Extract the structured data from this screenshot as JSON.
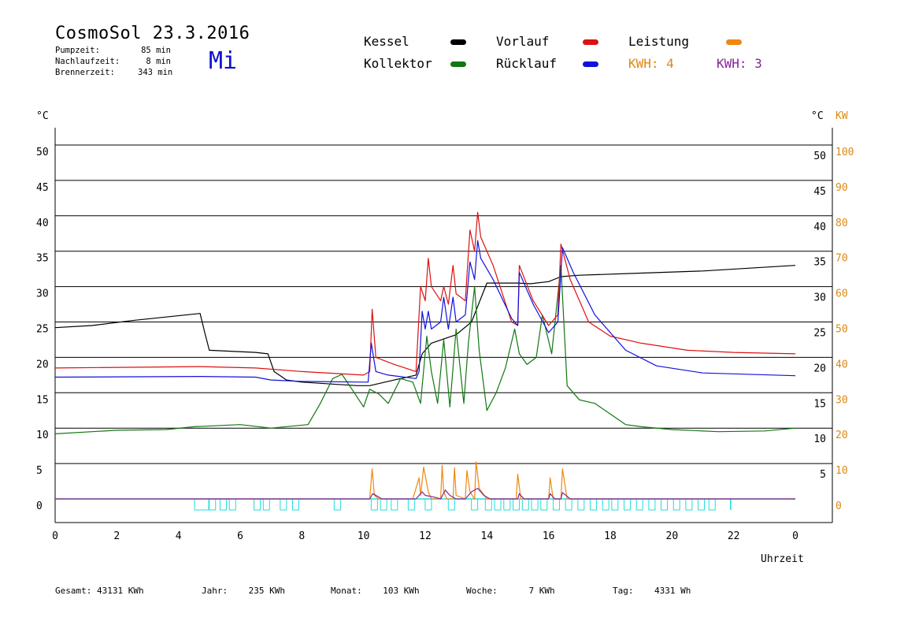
{
  "header": {
    "title": "CosmoSol 23.3.2016",
    "weekday": "Mi",
    "stats": [
      {
        "label": "Pumpzeit:",
        "value": "85 min"
      },
      {
        "label": "Nachlaufzeit:",
        "value": "8 min"
      },
      {
        "label": "Brennerzeit:",
        "value": "343 min"
      }
    ]
  },
  "legend": {
    "kessel": {
      "label": "Kessel",
      "color": "#000000"
    },
    "kollektor": {
      "label": "Kollektor",
      "color": "#117711"
    },
    "vorlauf": {
      "label": "Vorlauf",
      "color": "#dd1111"
    },
    "ruecklauf": {
      "label": "Rücklauf",
      "color": "#1111dd"
    },
    "leistung": {
      "label": "Leistung",
      "color": "#ee8811"
    },
    "kwh_a": {
      "label": "KWH: 4",
      "color": "#dd8811"
    },
    "kwh_b": {
      "label": "KWH: 3",
      "color": "#882299"
    }
  },
  "axis_units": {
    "left": "°C",
    "right_c": "°C",
    "right_kw": "KW"
  },
  "footer": {
    "gesamt": {
      "label": "Gesamt:",
      "value": "43131 KWh"
    },
    "jahr": {
      "label": "Jahr:",
      "value": "235 KWh"
    },
    "monat": {
      "label": "Monat:",
      "value": "103 KWh"
    },
    "woche": {
      "label": "Woche:",
      "value": "7 KWh"
    },
    "tag": {
      "label": "Tag:",
      "value": "4331 Wh"
    }
  },
  "chart_data": {
    "type": "line",
    "xlabel": "Uhrzeit",
    "x_ticks": [
      "0",
      "2",
      "4",
      "6",
      "8",
      "10",
      "12",
      "14",
      "16",
      "18",
      "20",
      "22",
      "0"
    ],
    "xlim": [
      0,
      24
    ],
    "ylim_left": [
      0,
      50
    ],
    "y_ticks_left": [
      "0",
      "5",
      "10",
      "15",
      "20",
      "25",
      "30",
      "35",
      "40",
      "45",
      "50"
    ],
    "y_ticks_right_c": [
      "5",
      "10",
      "15",
      "20",
      "25",
      "30",
      "35",
      "40",
      "45",
      "50"
    ],
    "y_ticks_right_kw": [
      "0",
      "10",
      "20",
      "30",
      "40",
      "50",
      "60",
      "70",
      "80",
      "90",
      "100"
    ],
    "grid": true,
    "series": [
      {
        "name": "Kessel",
        "color": "#000000",
        "x": [
          0,
          1.2,
          2.5,
          4.7,
          4.85,
          5.0,
          6.5,
          6.9,
          7.1,
          7.5,
          8.0,
          9.8,
          10.2,
          11.0,
          11.7,
          11.9,
          12.2,
          13.0,
          13.5,
          14.0,
          15.0,
          15.4,
          16.0,
          16.4,
          17.0,
          19.0,
          21.0,
          24.0
        ],
        "values": [
          24.2,
          24.5,
          25.2,
          26.2,
          23.5,
          21.0,
          20.7,
          20.5,
          18.0,
          16.8,
          16.5,
          16.0,
          16.0,
          16.8,
          17.5,
          20.5,
          22.0,
          23.2,
          25.0,
          30.5,
          30.5,
          30.4,
          30.7,
          31.4,
          31.6,
          31.9,
          32.2,
          33.0
        ]
      },
      {
        "name": "Kollektor",
        "color": "#117711",
        "x": [
          0,
          2,
          3.6,
          4.5,
          6.0,
          7.0,
          8.2,
          8.6,
          9.0,
          9.3,
          9.7,
          10.0,
          10.2,
          10.5,
          10.8,
          11.2,
          11.6,
          11.85,
          12.05,
          12.2,
          12.4,
          12.6,
          12.8,
          13.0,
          13.25,
          13.4,
          13.6,
          13.75,
          14.0,
          14.3,
          14.6,
          14.9,
          15.05,
          15.3,
          15.6,
          15.8,
          16.1,
          16.4,
          16.6,
          17.0,
          17.5,
          18.0,
          18.5,
          19.0,
          20.0,
          21.5,
          23.0,
          24.0
        ],
        "values": [
          9.2,
          9.7,
          9.8,
          10.2,
          10.5,
          10.0,
          10.5,
          13.5,
          17.0,
          17.6,
          15.0,
          13.0,
          15.5,
          14.8,
          13.5,
          17.0,
          16.5,
          13.5,
          23.0,
          18.0,
          13.5,
          22.5,
          13.0,
          24.0,
          13.5,
          22.0,
          30.0,
          21.0,
          12.5,
          15.0,
          18.5,
          24.0,
          20.5,
          19.0,
          20.0,
          26.0,
          20.5,
          33.0,
          16.0,
          14.0,
          13.5,
          12.0,
          10.5,
          10.2,
          9.8,
          9.5,
          9.6,
          10.0
        ]
      },
      {
        "name": "Vorlauf",
        "color": "#dd1111",
        "x": [
          0,
          4.7,
          6.5,
          8.0,
          10.0,
          10.2,
          10.28,
          10.4,
          11.0,
          11.7,
          11.85,
          12.0,
          12.1,
          12.2,
          12.5,
          12.6,
          12.75,
          12.9,
          13.0,
          13.3,
          13.45,
          13.6,
          13.7,
          13.8,
          14.2,
          14.8,
          15.0,
          15.05,
          15.5,
          16.0,
          16.3,
          16.4,
          16.7,
          17.3,
          18.0,
          19.0,
          20.5,
          22.0,
          24.0
        ],
        "values": [
          18.5,
          18.7,
          18.5,
          18.0,
          17.5,
          18.0,
          26.8,
          20.0,
          19.0,
          18.0,
          30.0,
          28.0,
          34.0,
          30.0,
          28.0,
          30.0,
          27.5,
          33.0,
          29.0,
          28.0,
          38.0,
          35.0,
          40.5,
          37.0,
          33.0,
          25.0,
          24.5,
          33.0,
          28.0,
          24.5,
          26.0,
          36.0,
          31.0,
          25.0,
          23.0,
          22.0,
          21.0,
          20.7,
          20.5
        ]
      },
      {
        "name": "Rücklauf",
        "color": "#1111dd",
        "x": [
          0,
          4.7,
          6.5,
          7.0,
          8.0,
          10.0,
          10.15,
          10.25,
          10.4,
          10.8,
          11.7,
          11.8,
          11.9,
          12.0,
          12.1,
          12.2,
          12.5,
          12.6,
          12.75,
          12.9,
          13.0,
          13.3,
          13.45,
          13.6,
          13.7,
          13.8,
          14.2,
          14.8,
          15.0,
          15.05,
          15.5,
          16.0,
          16.3,
          16.45,
          16.8,
          17.5,
          18.5,
          19.5,
          21.0,
          24.0
        ],
        "values": [
          17.2,
          17.3,
          17.2,
          16.8,
          16.6,
          16.5,
          16.5,
          22.0,
          18.0,
          17.5,
          17.0,
          18.0,
          26.5,
          24.0,
          26.5,
          24.0,
          25.0,
          28.5,
          24.0,
          28.5,
          25.0,
          26.0,
          33.5,
          31.0,
          36.5,
          34.0,
          31.0,
          25.5,
          24.5,
          32.0,
          27.5,
          23.5,
          25.0,
          35.5,
          32.0,
          26.0,
          21.0,
          18.8,
          17.8,
          17.4
        ]
      },
      {
        "name": "Leistung",
        "color": "#ee8811",
        "axis": "right_kw",
        "x": [
          0,
          10.2,
          10.28,
          10.35,
          10.5,
          11.6,
          11.8,
          11.85,
          11.95,
          12.1,
          12.2,
          12.5,
          12.55,
          12.6,
          12.7,
          12.9,
          12.95,
          13.0,
          13.3,
          13.35,
          13.45,
          13.6,
          13.65,
          13.75,
          14.0,
          14.95,
          15.0,
          15.1,
          16.0,
          16.05,
          16.15,
          16.4,
          16.45,
          16.6,
          24.0
        ],
        "values": [
          0,
          0,
          8.5,
          1,
          0,
          0,
          6,
          1,
          9,
          2,
          0,
          0,
          9.5,
          2,
          0,
          0,
          8.8,
          1,
          0,
          8,
          2,
          0,
          10.5,
          3,
          0,
          0,
          7,
          0,
          0,
          6,
          0,
          0,
          8.5,
          0,
          0
        ]
      },
      {
        "name": "KWH: 3",
        "color": "#882299",
        "axis": "right_kw",
        "x": [
          0,
          10.2,
          10.3,
          10.6,
          11.7,
          11.9,
          12.0,
          12.3,
          12.5,
          12.65,
          12.8,
          13.0,
          13.3,
          13.5,
          13.7,
          13.9,
          14.1,
          15.0,
          15.05,
          15.2,
          16.0,
          16.05,
          16.2,
          16.4,
          16.45,
          16.7,
          24.0
        ],
        "values": [
          0,
          0,
          1.5,
          0,
          0,
          2,
          1,
          0.5,
          0,
          2.5,
          1,
          0,
          0,
          2,
          3,
          1,
          0,
          0,
          1.5,
          0,
          0,
          1.5,
          0,
          0,
          1.8,
          0,
          0
        ]
      }
    ]
  }
}
